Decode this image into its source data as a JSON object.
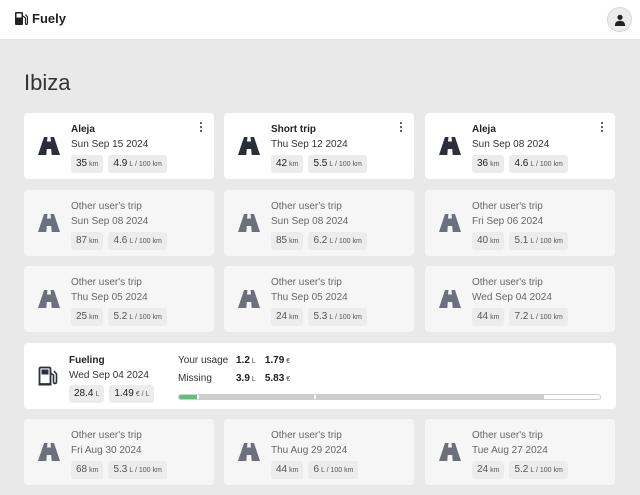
{
  "app": {
    "name": "Fuely",
    "logo_icon": "fuel-pump-icon",
    "account_icon": "user-icon"
  },
  "page": {
    "title": "Ibiza"
  },
  "trips": [
    {
      "title": "Aleja",
      "date": "Sun Sep 15 2024",
      "distance": "35",
      "distance_unit": "km",
      "consumption": "4.9",
      "consumption_unit": "L / 100 km",
      "own": true,
      "icon": "road-icon"
    },
    {
      "title": "Short trip",
      "date": "Thu Sep 12 2024",
      "distance": "42",
      "distance_unit": "km",
      "consumption": "5.5",
      "consumption_unit": "L / 100 km",
      "own": true,
      "icon": "road-icon"
    },
    {
      "title": "Aleja",
      "date": "Sun Sep 08 2024",
      "distance": "36",
      "distance_unit": "km",
      "consumption": "4.6",
      "consumption_unit": "L / 100 km",
      "own": true,
      "icon": "road-icon"
    },
    {
      "title": "Other user's trip",
      "date": "Sun Sep 08 2024",
      "distance": "87",
      "distance_unit": "km",
      "consumption": "4.6",
      "consumption_unit": "L / 100 km",
      "own": false,
      "icon": "road-icon"
    },
    {
      "title": "Other user's trip",
      "date": "Sun Sep 08 2024",
      "distance": "85",
      "distance_unit": "km",
      "consumption": "6.2",
      "consumption_unit": "L / 100 km",
      "own": false,
      "icon": "road-icon"
    },
    {
      "title": "Other user's trip",
      "date": "Fri Sep 06 2024",
      "distance": "40",
      "distance_unit": "km",
      "consumption": "5.1",
      "consumption_unit": "L / 100 km",
      "own": false,
      "icon": "road-icon"
    },
    {
      "title": "Other user's trip",
      "date": "Thu Sep 05 2024",
      "distance": "25",
      "distance_unit": "km",
      "consumption": "5.2",
      "consumption_unit": "L / 100 km",
      "own": false,
      "icon": "road-icon"
    },
    {
      "title": "Other user's trip",
      "date": "Thu Sep 05 2024",
      "distance": "24",
      "distance_unit": "km",
      "consumption": "5.3",
      "consumption_unit": "L / 100 km",
      "own": false,
      "icon": "road-icon"
    },
    {
      "title": "Other user's trip",
      "date": "Wed Sep 04 2024",
      "distance": "44",
      "distance_unit": "km",
      "consumption": "7.2",
      "consumption_unit": "L / 100 km",
      "own": false,
      "icon": "road-icon"
    },
    {
      "title": "Other user's trip",
      "date": "Fri Aug 30 2024",
      "distance": "68",
      "distance_unit": "km",
      "consumption": "5.3",
      "consumption_unit": "L / 100 km",
      "own": false,
      "icon": "road-icon"
    },
    {
      "title": "Other user's trip",
      "date": "Thu Aug 29 2024",
      "distance": "44",
      "distance_unit": "km",
      "consumption": "6",
      "consumption_unit": "L / 100 km",
      "own": false,
      "icon": "road-icon"
    },
    {
      "title": "Other user's trip",
      "date": "Tue Aug 27 2024",
      "distance": "24",
      "distance_unit": "km",
      "consumption": "5.2",
      "consumption_unit": "L / 100 km",
      "own": false,
      "icon": "road-icon"
    }
  ],
  "fueling": {
    "title": "Fueling",
    "date": "Wed Sep 04 2024",
    "icon": "fuel-pump-icon",
    "amount": "28.4",
    "amount_unit": "L",
    "price": "1.49",
    "price_unit": "€ / L",
    "usage_label": "Your usage",
    "usage_liters": "1.2",
    "usage_liters_unit": "L",
    "usage_cost": "1.79",
    "usage_cost_unit": "€",
    "missing_label": "Missing",
    "missing_liters": "3.9",
    "missing_liters_unit": "L",
    "missing_cost": "5.83",
    "missing_cost_unit": "€",
    "progress_segments": [
      {
        "fraction": 0.042,
        "color": "#5ec176"
      },
      {
        "fraction": 0.273,
        "color": "#cdcdcd"
      },
      {
        "fraction": 0.542,
        "color": "#cdcdcd"
      }
    ]
  }
}
